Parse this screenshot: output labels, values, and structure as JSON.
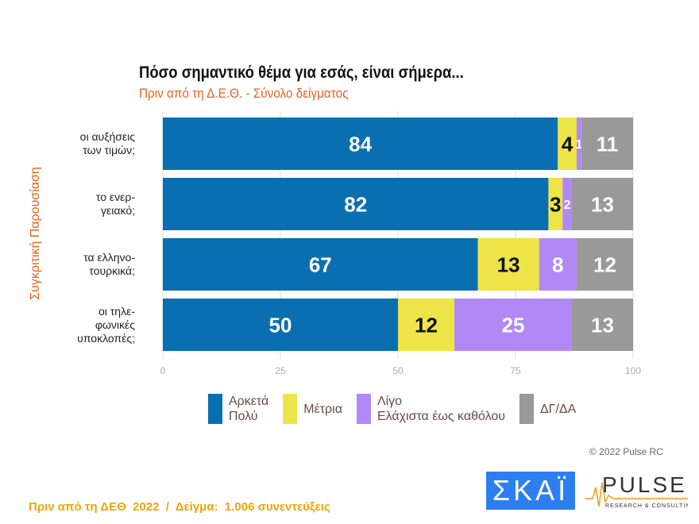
{
  "chart_data": {
    "type": "bar",
    "orientation": "horizontal",
    "stacked": true,
    "title": "Πόσο σημαντικό θέμα για εσάς, είναι σήμερα...",
    "subtitle": "Πριν από τη Δ.Ε.Θ.  -  Σύνολο δείγματος",
    "ylabel": "Συγκριτική Παρουσίαση",
    "categories": [
      "οι αυξήσεις\nτων τιμών;",
      "το ενερ-\nγειακό;",
      "τα ελληνο-\nτουρκικά;",
      "οι τηλε-\nφωνικές\nυποκλοπές;"
    ],
    "series": [
      {
        "name": "Αρκετά\nΠολύ",
        "color": "#0a6fb0",
        "label_color": "#ffffff",
        "values": [
          84,
          82,
          67,
          50
        ]
      },
      {
        "name": "Μέτρια",
        "color": "#ede547",
        "label_color": "#111111",
        "values": [
          4,
          3,
          13,
          12
        ]
      },
      {
        "name": "Λίγο\nΕλάχιστα έως καθόλου",
        "color": "#b189f7",
        "label_color": "#ffffff",
        "values": [
          1,
          2,
          8,
          25
        ]
      },
      {
        "name": "ΔΓ/ΔΑ",
        "color": "#999999",
        "label_color": "#ffffff",
        "values": [
          11,
          13,
          12,
          13
        ]
      }
    ],
    "xlim": [
      0,
      100
    ],
    "xticks": [
      "0",
      "25",
      "50",
      "75",
      "100"
    ],
    "grid": true,
    "legend": "bottom"
  },
  "copyright": "© 2022 Pulse RC",
  "footer": "Πριν από τη ΔΕΘ  2022  /  Δείγμα:  1.006 συνεντεύξεις",
  "logos": {
    "skai": "ΣΚΑΪ",
    "pulse": "PULSE",
    "pulse_sub": "RESEARCH & CONSULTING"
  }
}
